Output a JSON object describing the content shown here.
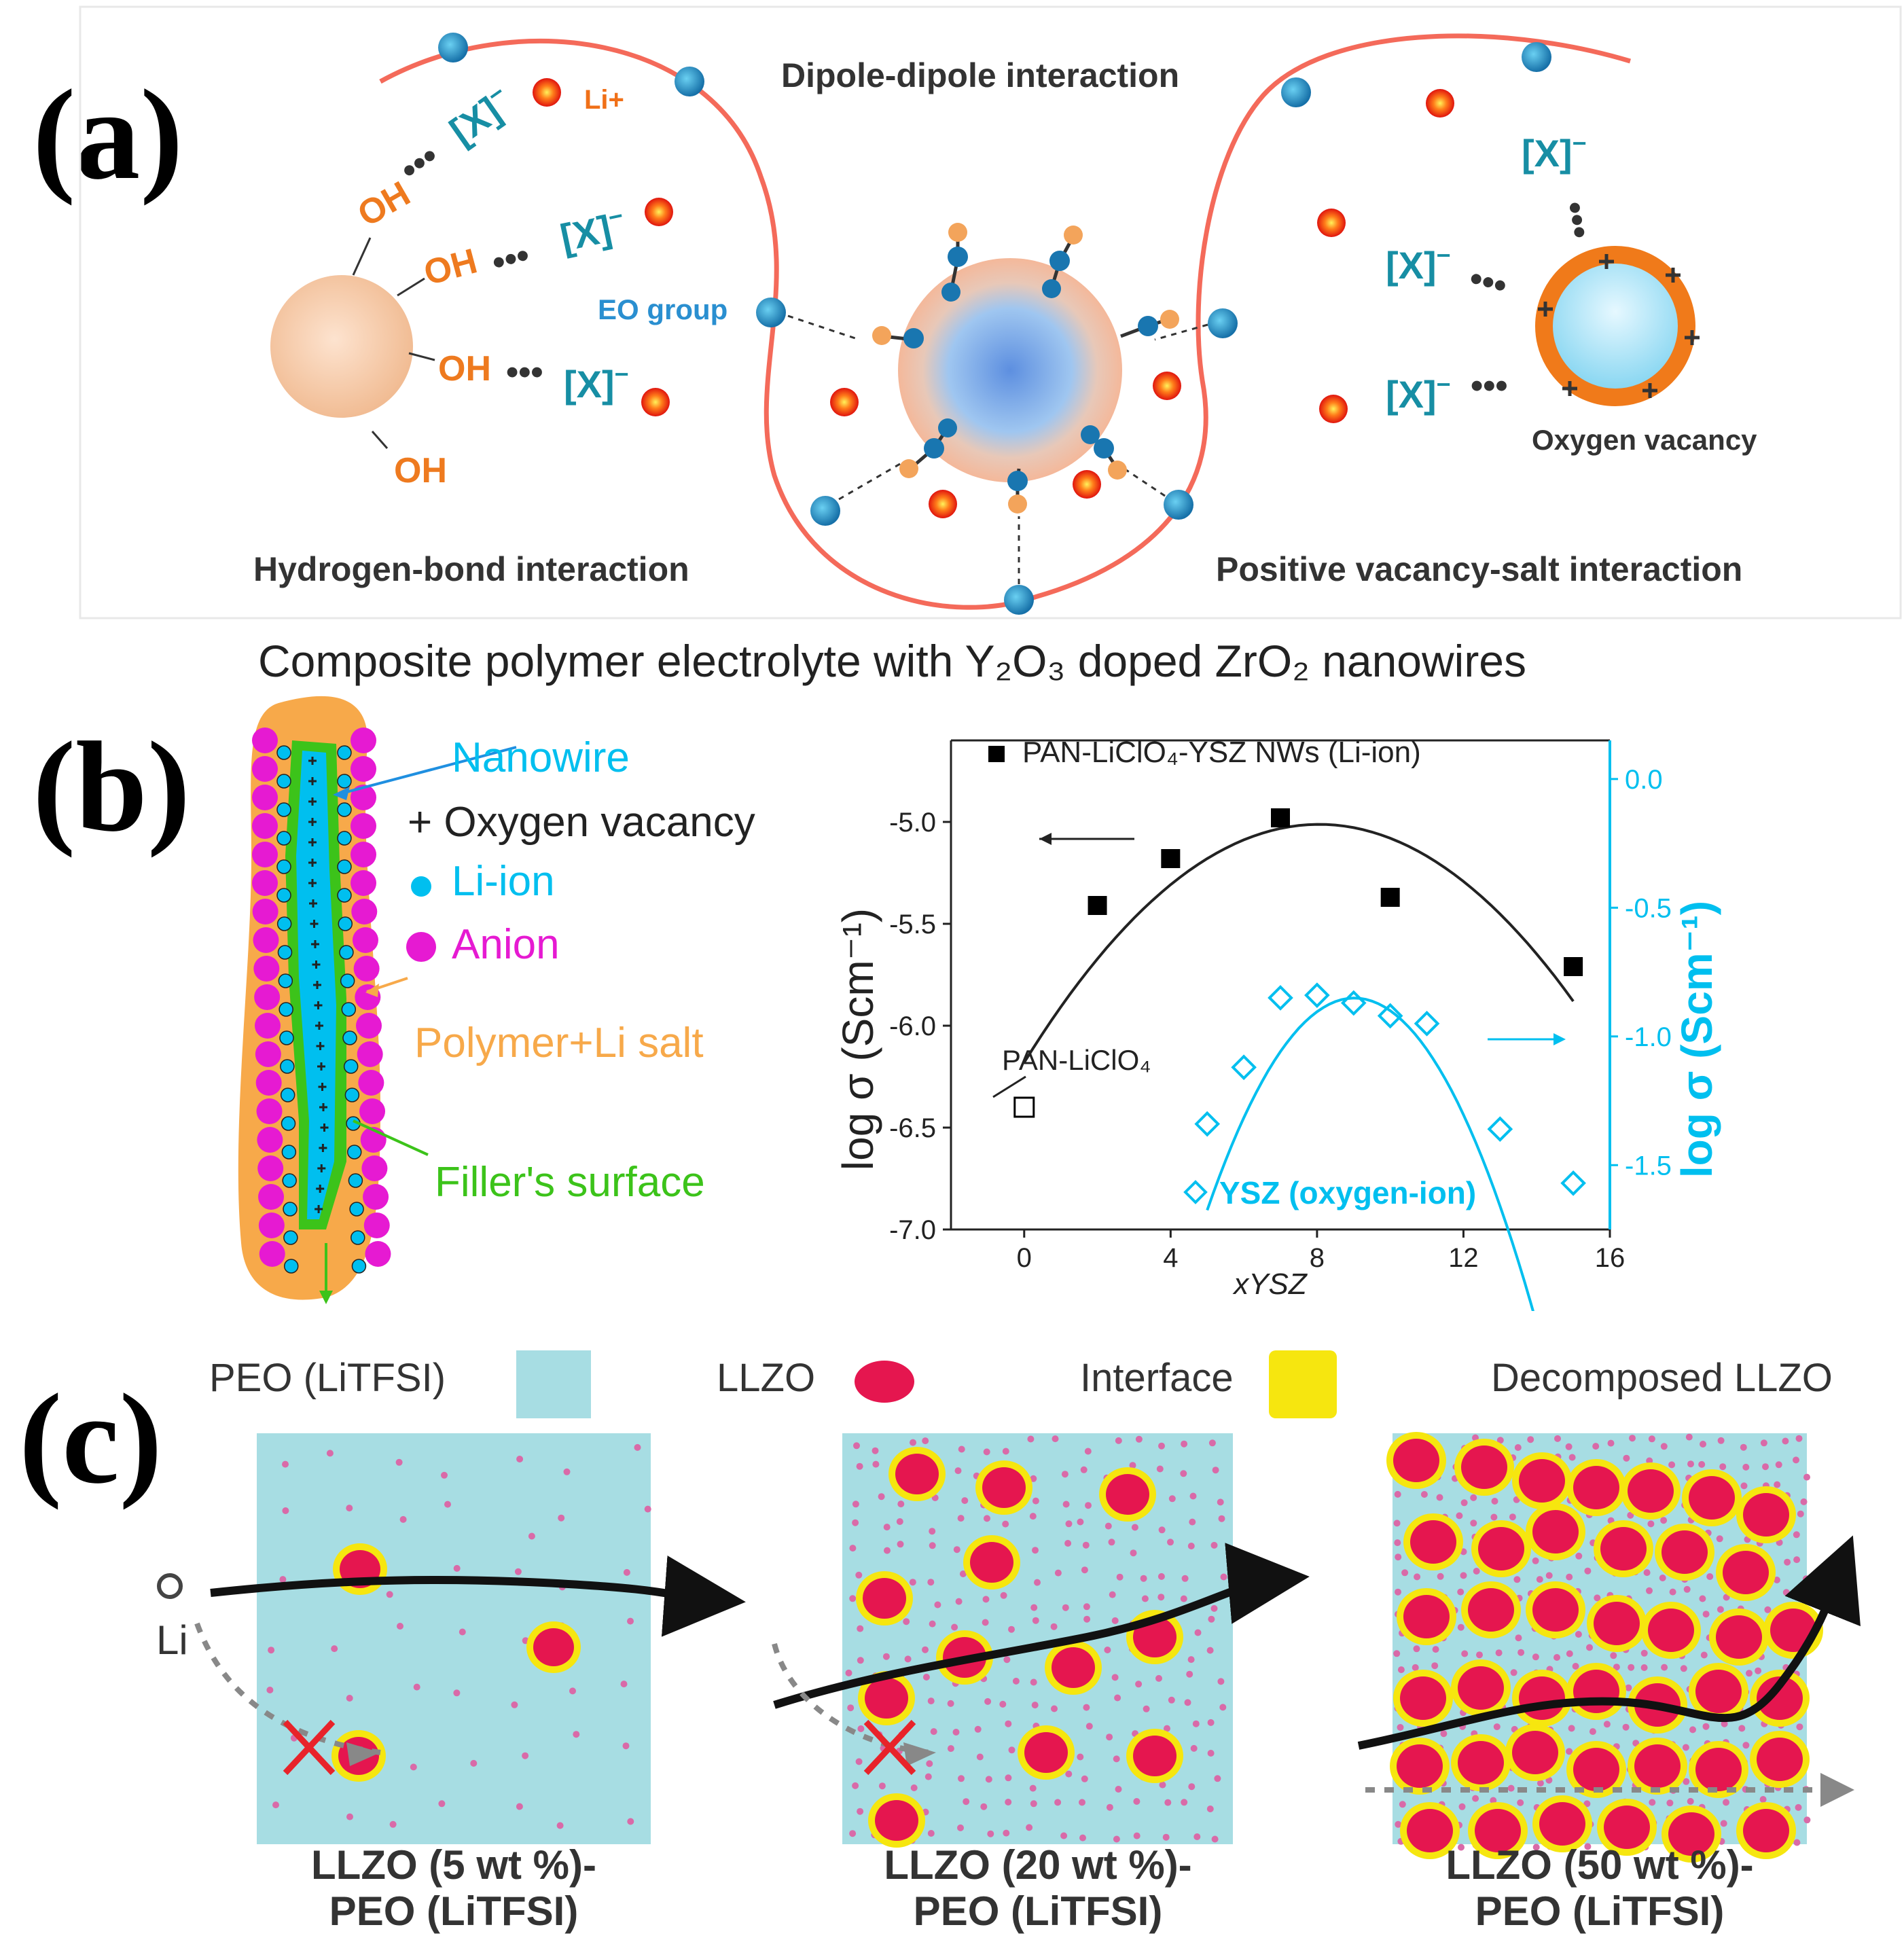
{
  "panel_a": {
    "letter": "(a)",
    "title_center": "Dipole-dipole interaction",
    "title_left": "Hydrogen-bond interaction",
    "title_right": "Positive vacancy-salt interaction",
    "li_label": "Li+",
    "oh_label": "OH",
    "anion_label": "[X]",
    "anion_charge": "−",
    "eo_label": "EO group",
    "vacancy_label": "Oxygen vacancy",
    "dots": "•••"
  },
  "panel_b": {
    "letter": "(b)",
    "title": "Composite polymer electrolyte with Y₂O₃ doped ZrO₂ nanowires",
    "legend": {
      "nanowire": "Nanowire",
      "vacancy": "+ Oxygen vacancy",
      "li_ion": "Li-ion",
      "anion": "Anion",
      "polymer": "Polymer+Li salt",
      "filler": "Filler's surface"
    },
    "colors": {
      "cyan": "#00bfef",
      "magenta": "#e61ad2",
      "orange": "#f7a94a",
      "green": "#3cc31a"
    }
  },
  "chart_data": {
    "type": "scatter",
    "xlabel": "xYSZ",
    "ylabel_left": "log σ (Scm⁻¹)",
    "ylabel_right": "log σ (Scm⁻¹)",
    "xlim": [
      -2,
      16
    ],
    "ylim_left": [
      -7.0,
      -4.6
    ],
    "ylim_right": [
      -1.75,
      0.15
    ],
    "x_ticks": [
      "0",
      "4",
      "8",
      "12",
      "16"
    ],
    "y_ticks_left": [
      "-5.0",
      "-5.5",
      "-6.0",
      "-6.5",
      "-7.0"
    ],
    "y_ticks_right": [
      "0.0",
      "-0.5",
      "-1.0",
      "-1.5"
    ],
    "series": [
      {
        "name": "PAN-LiClO4-YSZ NWs (Li-ion)",
        "axis": "left",
        "marker": "filled-square",
        "color": "#000000",
        "x": [
          2,
          4,
          7,
          10,
          15
        ],
        "y": [
          -5.41,
          -5.18,
          -4.98,
          -5.37,
          -5.71
        ]
      },
      {
        "name": "PAN-LiClO4",
        "axis": "left",
        "marker": "open-square",
        "color": "#000000",
        "x": [
          0
        ],
        "y": [
          -6.4
        ]
      },
      {
        "name": "YSZ (oxygen-ion)",
        "axis": "right",
        "marker": "open-diamond",
        "color": "#00bfef",
        "x": [
          5,
          6,
          7,
          8,
          9,
          10,
          11,
          13,
          15
        ],
        "y": [
          -1.34,
          -1.12,
          -0.85,
          -0.84,
          -0.87,
          -0.92,
          -0.95,
          -1.36,
          -1.57
        ]
      }
    ],
    "fits": [
      {
        "axis": "left",
        "color": "#222222",
        "x_range": [
          0,
          15
        ],
        "coeff": [
          -6.18,
          0.29,
          -0.018
        ]
      },
      {
        "axis": "right",
        "color": "#00bfef",
        "x_range": [
          5,
          15
        ],
        "coeff": [
          -5.0,
          0.92,
          -0.051
        ]
      }
    ],
    "legend_li": "PAN-LiClO₄-YSZ NWs (Li-ion)",
    "label_pan": "PAN-LiClO₄",
    "legend_ysz": "YSZ (oxygen-ion)"
  },
  "panel_c": {
    "letter": "(c)",
    "legend": {
      "peo": "PEO (LiTFSI)",
      "llzo": "LLZO",
      "interface": "Interface",
      "decomposed": "Decomposed LLZO"
    },
    "li_label": "Li",
    "captions": [
      {
        "line1": "LLZO (5 wt %)-",
        "line2": "PEO (LiTFSI)"
      },
      {
        "line1": "LLZO (20 wt %)-",
        "line2": "PEO (LiTFSI)"
      },
      {
        "line1": "LLZO (50 wt %)-",
        "line2": "PEO (LiTFSI)"
      }
    ],
    "colors": {
      "peo": "#a7dde3",
      "llzo": "#e5164f",
      "interface": "#f6e60f",
      "dot": "#d96aa8"
    }
  }
}
